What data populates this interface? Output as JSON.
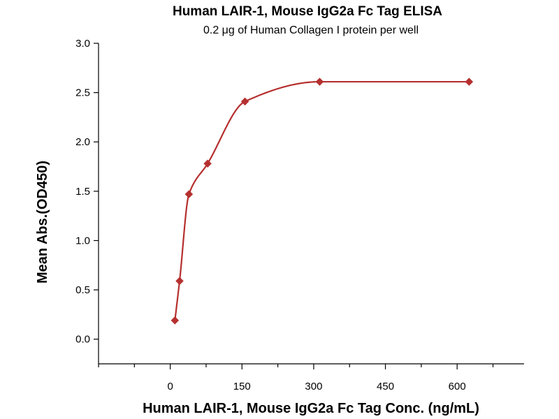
{
  "colors": {
    "series": "#b5302f",
    "axis": "#000000"
  },
  "chart_data": {
    "type": "scatter",
    "title": "Human LAIR-1, Mouse IgG2a Fc Tag ELISA",
    "subtitle": "0.2 μg of Human Collagen I protein per well",
    "xlabel": "Human LAIR-1, Mouse IgG2a Fc Tag Conc. (ng/mL)",
    "ylabel": "Mean Abs.(OD450)",
    "xlim": [
      -150,
      740
    ],
    "ylim": [
      -0.25,
      3.0
    ],
    "xticks": [
      0,
      150,
      300,
      450,
      600
    ],
    "yticks": [
      0.0,
      0.5,
      1.0,
      1.5,
      2.0,
      2.5,
      3.0
    ],
    "x_minor_step": 75,
    "grid": false,
    "legend": "none",
    "marker": "diamond",
    "fit": "four-parameter logistic curve",
    "series": [
      {
        "x": [
          9.77,
          19.53,
          39.06,
          78.13,
          156.25,
          312.5,
          625
        ],
        "y": [
          0.19,
          0.59,
          1.47,
          1.78,
          2.41,
          2.61,
          2.61
        ]
      }
    ]
  }
}
